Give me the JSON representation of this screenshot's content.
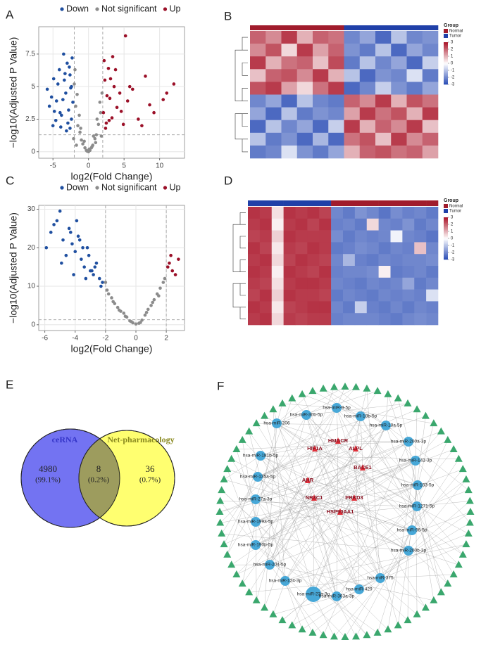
{
  "chart_data": [
    {
      "type": "volcano",
      "panel": "A",
      "xlabel": "log2(Fold Change)",
      "ylabel": "−log10(Adjusted P Value)",
      "xlim": [
        -7,
        13.5
      ],
      "ylim": [
        -0.5,
        9.6
      ],
      "xticks": [
        -5,
        0,
        5,
        10
      ],
      "yticks": [
        0,
        2.5,
        5,
        7.5
      ],
      "grid": true,
      "thresholds": {
        "x": [
          -2,
          2
        ],
        "y": 1.3
      },
      "series": [
        {
          "name": "Down",
          "color": "#1f4fa0",
          "x": [
            -5.8,
            -5.2,
            -4.9,
            -4.5,
            -4.1,
            -3.8,
            -3.5,
            -3.2,
            -3.0,
            -2.8,
            -2.6,
            -2.4,
            -2.3,
            -4.8,
            -4.3,
            -3.9,
            -3.6,
            -3.3,
            -2.9,
            -2.5,
            -5.5,
            -4.6,
            -3.1,
            -2.7,
            -2.2,
            -4.0,
            -3.4,
            -2.6,
            -5.0,
            -2.4
          ],
          "y": [
            4.8,
            4.2,
            5.6,
            3.9,
            6.3,
            2.8,
            7.5,
            4.5,
            6.8,
            3.2,
            5.9,
            2.5,
            7.2,
            3.1,
            5.2,
            1.9,
            4.0,
            6.0,
            2.2,
            4.9,
            3.5,
            2.4,
            1.6,
            6.5,
            3.8,
            3.0,
            5.5,
            1.8,
            2.0,
            5.0
          ]
        },
        {
          "name": "Not significant",
          "color": "#8c8c8c",
          "x": [
            -2.0,
            -1.8,
            -1.5,
            -1.2,
            -1.0,
            -0.8,
            -0.5,
            -0.3,
            0,
            0.2,
            0.4,
            0.6,
            0.9,
            1.1,
            1.4,
            1.7,
            1.9,
            -1.9,
            -1.6,
            -1.3,
            -0.6,
            0.1,
            0.7,
            1.2,
            1.6,
            -2.1,
            1.8,
            -0.2,
            0.5,
            -1.1,
            1.0,
            -1.7
          ],
          "y": [
            5.2,
            3.5,
            2.0,
            1.5,
            0.9,
            0.6,
            0.3,
            0.1,
            0,
            0.1,
            0.3,
            0.5,
            1.0,
            1.3,
            2.1,
            3.0,
            4.5,
            6.3,
            4.4,
            2.8,
            0.8,
            0.2,
            1.2,
            2.5,
            3.8,
            1.0,
            1.2,
            0.05,
            0.4,
            1.8,
            0.7,
            0.5
          ]
        },
        {
          "name": "Up",
          "color": "#9b1028",
          "x": [
            2.1,
            2.3,
            2.5,
            2.8,
            3.0,
            3.3,
            3.6,
            4.0,
            4.4,
            4.9,
            5.5,
            6.2,
            7.0,
            8.0,
            9.2,
            10.5,
            12.0,
            2.2,
            2.6,
            3.1,
            3.8,
            4.6,
            5.8,
            7.5,
            11.0,
            2.4,
            3.4,
            5.2,
            8.6,
            2.9
          ],
          "y": [
            3.0,
            5.5,
            2.2,
            6.4,
            4.1,
            2.6,
            5.0,
            3.4,
            4.5,
            2.1,
            3.9,
            4.8,
            2.5,
            5.8,
            3.0,
            4.0,
            5.2,
            7.0,
            4.3,
            5.6,
            6.3,
            3.1,
            5.0,
            2.0,
            4.5,
            1.8,
            7.3,
            8.9,
            3.6,
            2.4
          ]
        }
      ]
    },
    {
      "type": "heatmap",
      "panel": "B",
      "legend_title": "Group",
      "group_names": [
        "Normal",
        "Tumor"
      ],
      "group_colors": [
        "#a01c2c",
        "#2040a8"
      ],
      "groups": [
        "Normal",
        "Normal",
        "Normal",
        "Normal",
        "Normal",
        "Normal",
        "Tumor",
        "Tumor",
        "Tumor",
        "Tumor",
        "Tumor",
        "Tumor"
      ],
      "clim": [
        -3,
        3
      ],
      "cticks": [
        3,
        2,
        1,
        0,
        -1,
        -2,
        -3
      ],
      "values": [
        [
          2,
          1.5,
          2.5,
          1,
          2,
          1.8,
          -2,
          -1.5,
          -2.5,
          -1,
          -2,
          -1.8
        ],
        [
          1.5,
          2.2,
          0.5,
          2.5,
          1.2,
          2,
          -1.8,
          -2.2,
          -1,
          -2.5,
          -1.5,
          -2
        ],
        [
          2.5,
          1,
          1.8,
          2,
          0.8,
          2.3,
          -2.2,
          -1,
          -2,
          -1.5,
          -2.5,
          -0.8
        ],
        [
          0.8,
          2,
          2.2,
          1.5,
          2.5,
          1,
          -1,
          -2.5,
          -1.8,
          -2,
          -0.5,
          -2.2
        ],
        [
          2.2,
          2.5,
          1.2,
          0.5,
          1.8,
          2.5,
          -2.5,
          -2,
          -0.8,
          -1.8,
          -2.2,
          -1.5
        ],
        [
          -2,
          -1.5,
          -2.5,
          -1,
          -2,
          -2.2,
          2,
          1.5,
          2.5,
          1,
          2.2,
          1.8
        ],
        [
          -1.5,
          -2.5,
          -1,
          -2.2,
          -1.8,
          -2,
          1.2,
          2.5,
          1.8,
          2.2,
          1,
          2.5
        ],
        [
          -2.5,
          -1,
          -2,
          -1.5,
          -2.5,
          -0.8,
          2.5,
          1,
          2,
          1.5,
          2.5,
          0.8
        ],
        [
          -1,
          -2.2,
          -1.8,
          -2.5,
          -1.2,
          -2.5,
          1.8,
          2.2,
          0.8,
          2.5,
          1.5,
          2
        ],
        [
          -2.2,
          -2,
          -0.5,
          -1.8,
          -2.2,
          -1.5,
          1,
          2,
          2.2,
          1.8,
          2,
          1.2
        ]
      ]
    },
    {
      "type": "volcano",
      "panel": "C",
      "xlabel": "log2(Fold Change)",
      "ylabel": "−log10(Adjusted P Value)",
      "xlim": [
        -6.4,
        3.2
      ],
      "ylim": [
        -1.5,
        31
      ],
      "xticks": [
        -6,
        -4,
        -2,
        0,
        2
      ],
      "yticks": [
        0,
        10,
        20,
        30
      ],
      "grid": true,
      "thresholds": {
        "x": [
          -2,
          2
        ],
        "y": 1.3
      },
      "series": [
        {
          "name": "Down",
          "color": "#1f4fa0",
          "x": [
            -5.9,
            -5.6,
            -5.2,
            -5.0,
            -4.8,
            -4.6,
            -4.4,
            -4.2,
            -4.0,
            -3.8,
            -3.6,
            -3.4,
            -3.2,
            -3.0,
            -2.8,
            -2.6,
            -2.4,
            -2.2,
            -5.4,
            -4.9,
            -4.3,
            -3.9,
            -3.5,
            -3.1,
            -2.7,
            -2.3,
            -4.1,
            -3.7,
            -3.3,
            -2.9
          ],
          "y": [
            20,
            24,
            27,
            29.5,
            22,
            18,
            25,
            21,
            19,
            23,
            17,
            15,
            20,
            14,
            13,
            16,
            12,
            11,
            26,
            16,
            24,
            27,
            20,
            18,
            15,
            10,
            13,
            22,
            12,
            14
          ]
        },
        {
          "name": "Not significant",
          "color": "#8c8c8c",
          "x": [
            -2.0,
            -1.8,
            -1.6,
            -1.4,
            -1.2,
            -1.0,
            -0.8,
            -0.6,
            -0.4,
            -0.2,
            0,
            0.2,
            0.4,
            0.6,
            0.8,
            1.0,
            1.2,
            1.4,
            1.6,
            1.8,
            -1.9,
            -1.5,
            -1.1,
            -0.7,
            -0.3,
            0.3,
            0.7,
            1.1,
            1.5,
            1.9
          ],
          "y": [
            11,
            8,
            7,
            5.5,
            4.5,
            3.5,
            3,
            2,
            1,
            0.5,
            0.2,
            0.4,
            1.2,
            2.5,
            4,
            5,
            6.5,
            8,
            9.5,
            11,
            9,
            6,
            3.8,
            2.2,
            0.8,
            0.6,
            3.2,
            5.8,
            7.5,
            12
          ]
        },
        {
          "name": "Up",
          "color": "#9b1028",
          "x": [
            2.1,
            2.3,
            2.4,
            2.6,
            2.8,
            2.2
          ],
          "y": [
            15,
            18,
            14,
            13,
            17,
            16
          ]
        }
      ]
    },
    {
      "type": "heatmap",
      "panel": "D",
      "legend_title": "Group",
      "group_names": [
        "Normal",
        "Tumor"
      ],
      "group_colors": [
        "#a01c2c",
        "#2040a8"
      ],
      "groups": [
        "Tumor",
        "Tumor",
        "Tumor",
        "Tumor",
        "Tumor",
        "Tumor",
        "Tumor",
        "Normal",
        "Normal",
        "Normal",
        "Normal",
        "Normal",
        "Normal",
        "Normal",
        "Normal",
        "Normal"
      ],
      "clim": [
        -3,
        3
      ],
      "cticks": [
        3,
        2,
        1,
        0,
        -1,
        -2,
        -3
      ],
      "values": [
        [
          2.6,
          2.5,
          0.4,
          2.6,
          2.5,
          2.6,
          2.4,
          -2,
          -2.2,
          -1.8,
          -2,
          -2.3,
          -1.9,
          -2.1,
          -2,
          -2.2
        ],
        [
          2.5,
          2.6,
          0.2,
          2.5,
          2.6,
          2.4,
          2.6,
          -2.1,
          -2,
          -2.2,
          0.5,
          -2,
          -2.1,
          -1.8,
          -2.2,
          -2
        ],
        [
          2.4,
          2.5,
          0.6,
          2.6,
          2.5,
          2.5,
          2.5,
          -1.9,
          -2.2,
          -2,
          -2.1,
          -2,
          -0.2,
          -2,
          -2.1,
          -2.3
        ],
        [
          2.6,
          2.4,
          0.3,
          2.5,
          2.4,
          2.6,
          2.5,
          -2.2,
          -2.1,
          -1.9,
          -2,
          -2.2,
          -2,
          -2.1,
          0.8,
          -2
        ],
        [
          2.5,
          2.6,
          0.5,
          2.4,
          2.6,
          2.5,
          2.4,
          -2,
          -1.2,
          -2.1,
          -2.2,
          -2,
          -2.1,
          -2,
          -2,
          -1.9
        ],
        [
          2.6,
          2.5,
          0.2,
          2.6,
          2.5,
          2.4,
          2.6,
          -2.1,
          -2,
          -2,
          -1.9,
          0.2,
          -2.2,
          -2.1,
          -2,
          -2.2
        ],
        [
          2.5,
          2.4,
          0.4,
          2.5,
          2.6,
          2.6,
          2.5,
          -2,
          -2.1,
          -2.2,
          -2,
          -2.1,
          -2,
          -1.5,
          -2.2,
          -2
        ],
        [
          2.4,
          2.6,
          0.6,
          2.6,
          2.5,
          2.5,
          2.4,
          -2.2,
          -2,
          -2.1,
          -2.2,
          -2,
          -2.1,
          -2,
          -2.1,
          -0.5
        ],
        [
          2.6,
          2.5,
          0.3,
          2.4,
          2.5,
          2.6,
          2.6,
          -2,
          -2.2,
          -0.8,
          -2.1,
          -2.2,
          -2,
          -2.2,
          -2,
          -2.1
        ],
        [
          2.5,
          2.6,
          0.5,
          2.5,
          2.4,
          2.5,
          2.5,
          -2.1,
          -2,
          -2,
          -2,
          -2.1,
          -2.2,
          -2,
          -1.9,
          -2
        ]
      ]
    },
    {
      "type": "venn",
      "panel": "E",
      "sets": [
        {
          "name": "ceRNA",
          "color": "#7373f2",
          "label_color": "#3535c8"
        },
        {
          "name": "Net-pharmacology",
          "color": "#ffff70",
          "label_color": "#8a8a20"
        }
      ],
      "overlap_color": "#9d9c5e",
      "counts": [
        4980,
        8,
        36
      ],
      "percentage_labels": [
        "(99.1%)",
        "(0.2%)",
        "(0.7%)"
      ]
    },
    {
      "type": "network",
      "panel": "F",
      "mirna_color": "#47a8d8",
      "gene_color": "#e0303a",
      "lnc_color": "#3aa76d",
      "mirna_nodes": [
        "hsa-miR-9-5p",
        "hsa-miR-30b-5p",
        "hsa-miR-18b-5p",
        "hsa-miR-206",
        "hsa-miR-18a-5p",
        "hsa-miR-200a-3p",
        "hsa-miR-181b-5p",
        "hsa-miR-141-3p",
        "hsa-miR-135a-5p",
        "hsa-miR-183-5p",
        "hsa-miR-27a-3p",
        "hsa-miR-1271-5p",
        "hsa-miR-199a-5p",
        "hsa-miR-96-5p",
        "hsa-miR-190b-5p",
        "hsa-miR-200b-3p",
        "hsa-miR-204-5p",
        "hsa-miR-375",
        "hsa-miR-124-3p",
        "hsa-miR-429",
        "hsa-miR-23a-3p",
        "hsa-miR-363a-3p"
      ],
      "gene_nodes": [
        "HMGCR",
        "HIF1A",
        "ALPL",
        "AHR",
        "BACE1",
        "NR3C1",
        "PRKD3",
        "HSP90AA1"
      ]
    }
  ]
}
